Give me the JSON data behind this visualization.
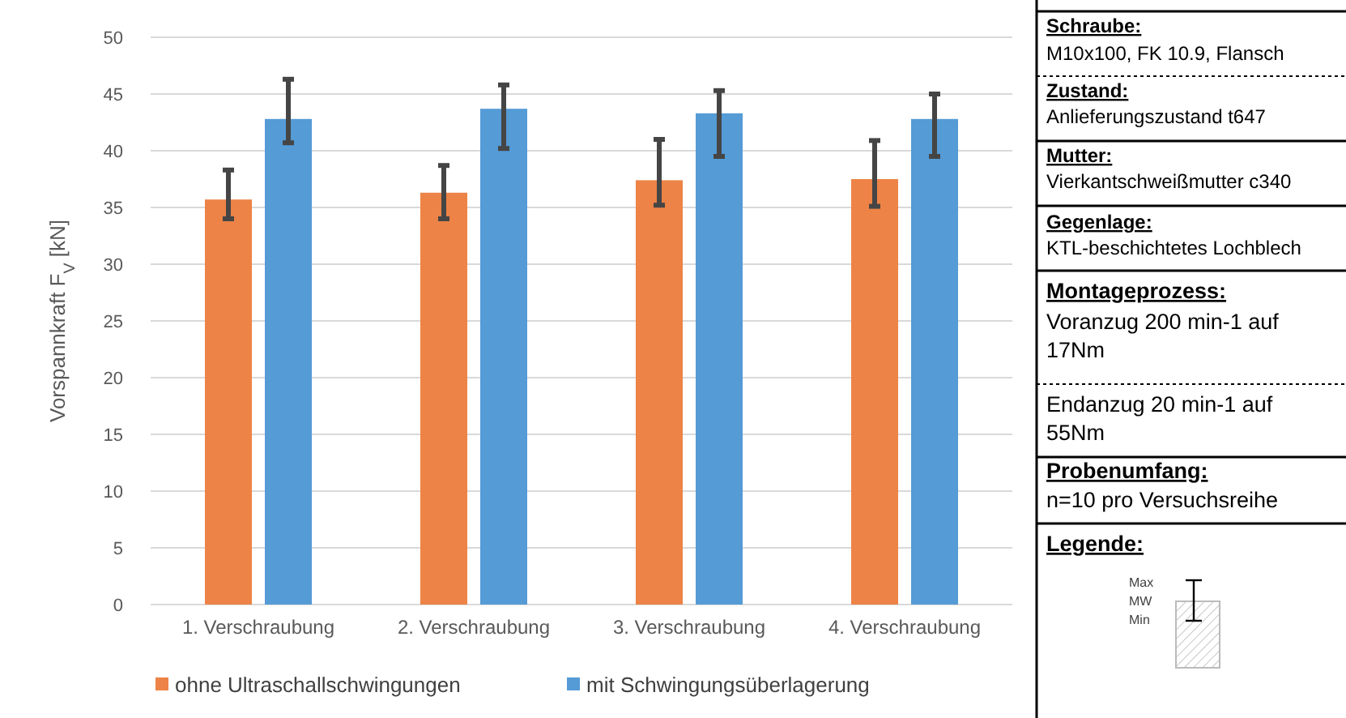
{
  "chart_data": [
    {
      "type": "bar",
      "ylabel": "Vorspannkraft F$_{V}$ [kN]",
      "categories": [
        "1. Verschraubung",
        "2. Verschraubung",
        "3. Verschraubung",
        "4. Verschraubung"
      ],
      "series": [
        {
          "name": "ohne Ultraschallschwingungen",
          "color": "#ed8346",
          "values": [
            35.7,
            36.3,
            37.4,
            37.5
          ],
          "errors": [
            [
              34.0,
              38.3
            ],
            [
              34.0,
              38.7
            ],
            [
              35.2,
              41.0
            ],
            [
              35.1,
              40.9
            ]
          ]
        },
        {
          "name": "mit Schwingungsüberlagerung",
          "color": "#559bd6",
          "values": [
            42.8,
            43.7,
            43.3,
            42.8
          ],
          "errors": [
            [
              40.7,
              46.3
            ],
            [
              40.2,
              45.8
            ],
            [
              39.5,
              45.3
            ],
            [
              39.5,
              45.0
            ]
          ]
        }
      ],
      "ylim": [
        0,
        50
      ],
      "yticks": [
        0,
        5,
        10,
        15,
        20,
        25,
        30,
        35,
        40,
        45,
        50
      ],
      "grid": true,
      "legend": "bottom"
    },
    {
      "type": "other",
      "annotations": [
        "Schraube:",
        "M10x100, FK 10.9, Flansch",
        "Zustand:",
        "Anlieferungszustand t647",
        "Mutter:",
        "Vierkantschweißmutter c340",
        "Gegenlage:",
        "KTL-beschichtetes Lochblech",
        "Montageprozess:",
        "Voranzug 200 min-1 auf 17Nm",
        "Endanzug 20 min-1 auf 55Nm",
        "Probenumfang:",
        "n=10 pro Versuchsreihe",
        "Legende:",
        "Max",
        "MW",
        "Min"
      ]
    }
  ]
}
